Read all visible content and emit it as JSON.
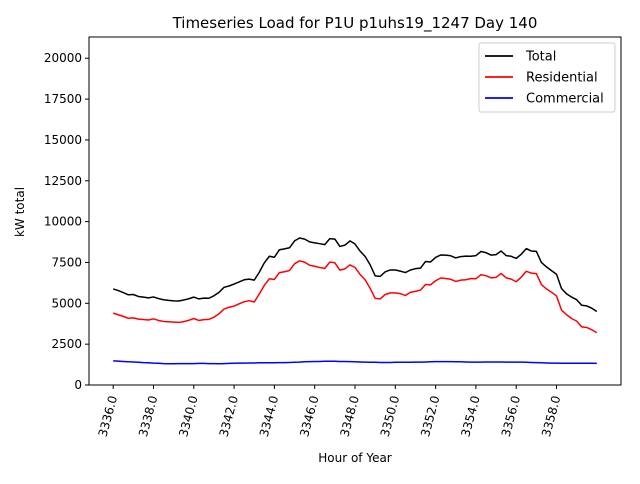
{
  "chart_data": {
    "type": "line",
    "title": "Timeseries Load for P1U p1uhs19_1247  Day 140",
    "xlabel": "Hour of Year",
    "ylabel": "kW total",
    "xlim": [
      3334.8,
      3361.2
    ],
    "ylim": [
      0,
      21300
    ],
    "grid": false,
    "legend_position": "top-right",
    "x_ticks": [
      "3336.0",
      "3338.0",
      "3340.0",
      "3342.0",
      "3344.0",
      "3346.0",
      "3348.0",
      "3350.0",
      "3352.0",
      "3354.0",
      "3356.0",
      "3358.0"
    ],
    "x_tick_values": [
      3336,
      3338,
      3340,
      3342,
      3344,
      3346,
      3348,
      3350,
      3352,
      3354,
      3356,
      3358
    ],
    "y_ticks": [
      "0",
      "2500",
      "5000",
      "7500",
      "10000",
      "12500",
      "15000",
      "17500",
      "20000"
    ],
    "y_tick_values": [
      0,
      2500,
      5000,
      7500,
      10000,
      12500,
      15000,
      17500,
      20000
    ],
    "x": [
      3336.0,
      3336.25,
      3336.5,
      3336.75,
      3337.0,
      3337.25,
      3337.5,
      3337.75,
      3338.0,
      3338.25,
      3338.5,
      3338.75,
      3339.0,
      3339.25,
      3339.5,
      3339.75,
      3340.0,
      3340.25,
      3340.5,
      3340.75,
      3341.0,
      3341.25,
      3341.5,
      3341.75,
      3342.0,
      3342.25,
      3342.5,
      3342.75,
      3343.0,
      3343.25,
      3343.5,
      3343.75,
      3344.0,
      3344.25,
      3344.5,
      3344.75,
      3345.0,
      3345.25,
      3345.5,
      3345.75,
      3346.0,
      3346.25,
      3346.5,
      3346.75,
      3347.0,
      3347.25,
      3347.5,
      3347.75,
      3348.0,
      3348.25,
      3348.5,
      3348.75,
      3349.0,
      3349.25,
      3349.5,
      3349.75,
      3350.0,
      3350.25,
      3350.5,
      3350.75,
      3351.0,
      3351.25,
      3351.5,
      3351.75,
      3352.0,
      3352.25,
      3352.5,
      3352.75,
      3353.0,
      3353.25,
      3353.5,
      3353.75,
      3354.0,
      3354.25,
      3354.5,
      3354.75,
      3355.0,
      3355.25,
      3355.5,
      3355.75,
      3356.0,
      3356.25,
      3356.5,
      3356.75,
      3357.0,
      3357.25,
      3357.5,
      3357.75,
      3358.0,
      3358.25,
      3358.5,
      3358.75,
      3359.0,
      3359.25,
      3359.5,
      3359.75
    ],
    "series": [
      {
        "name": "Total",
        "color": "#000000",
        "values": [
          5880,
          5780,
          5660,
          5520,
          5540,
          5420,
          5380,
          5330,
          5390,
          5290,
          5220,
          5180,
          5150,
          5140,
          5200,
          5280,
          5380,
          5270,
          5320,
          5310,
          5460,
          5670,
          5980,
          6060,
          6180,
          6310,
          6440,
          6480,
          6420,
          6900,
          7480,
          7880,
          7820,
          8280,
          8330,
          8400,
          8820,
          9000,
          8930,
          8760,
          8700,
          8650,
          8590,
          8960,
          8930,
          8480,
          8560,
          8820,
          8630,
          8200,
          7870,
          7360,
          6680,
          6650,
          6930,
          7040,
          7040,
          6970,
          6880,
          7040,
          7120,
          7150,
          7560,
          7530,
          7810,
          7960,
          7950,
          7910,
          7780,
          7860,
          7890,
          7880,
          7920,
          8170,
          8100,
          7950,
          7980,
          8200,
          7920,
          7880,
          7750,
          8000,
          8350,
          8200,
          8180,
          7500,
          7230,
          7000,
          6780,
          5900,
          5580,
          5380,
          5220,
          4880,
          4840,
          4700
        ],
        "end_value": 4500
      },
      {
        "name": "Residential",
        "color": "#ff0000",
        "values": [
          4400,
          4300,
          4200,
          4080,
          4110,
          4030,
          4010,
          3980,
          4050,
          3950,
          3890,
          3870,
          3850,
          3830,
          3880,
          3960,
          4070,
          3950,
          4000,
          4020,
          4150,
          4360,
          4650,
          4760,
          4830,
          4970,
          5100,
          5160,
          5080,
          5570,
          6100,
          6500,
          6460,
          6880,
          6930,
          7010,
          7420,
          7600,
          7520,
          7330,
          7270,
          7190,
          7140,
          7520,
          7480,
          7030,
          7110,
          7350,
          7200,
          6770,
          6440,
          5920,
          5300,
          5270,
          5540,
          5640,
          5640,
          5590,
          5480,
          5680,
          5730,
          5810,
          6150,
          6130,
          6380,
          6550,
          6520,
          6470,
          6340,
          6420,
          6440,
          6520,
          6500,
          6750,
          6690,
          6560,
          6590,
          6830,
          6560,
          6480,
          6320,
          6600,
          6960,
          6850,
          6820,
          6150,
          5880,
          5680,
          5450,
          4580,
          4300,
          4070,
          3910,
          3560,
          3520,
          3380
        ],
        "end_value": 3200
      },
      {
        "name": "Commercial",
        "color": "#0000ff",
        "values": [
          1480,
          1460,
          1440,
          1420,
          1410,
          1390,
          1370,
          1360,
          1340,
          1330,
          1310,
          1300,
          1300,
          1310,
          1310,
          1310,
          1310,
          1320,
          1320,
          1310,
          1310,
          1300,
          1310,
          1320,
          1330,
          1340,
          1340,
          1350,
          1350,
          1360,
          1360,
          1360,
          1360,
          1370,
          1370,
          1380,
          1390,
          1400,
          1420,
          1430,
          1440,
          1440,
          1450,
          1450,
          1450,
          1440,
          1440,
          1430,
          1420,
          1410,
          1400,
          1390,
          1390,
          1380,
          1380,
          1380,
          1390,
          1390,
          1390,
          1390,
          1400,
          1400,
          1410,
          1420,
          1430,
          1430,
          1430,
          1430,
          1420,
          1420,
          1410,
          1400,
          1400,
          1400,
          1410,
          1410,
          1410,
          1410,
          1400,
          1400,
          1400,
          1400,
          1390,
          1380,
          1370,
          1360,
          1350,
          1340,
          1340,
          1330,
          1330,
          1330,
          1330,
          1330,
          1330,
          1330
        ],
        "end_value": 1320
      }
    ]
  }
}
